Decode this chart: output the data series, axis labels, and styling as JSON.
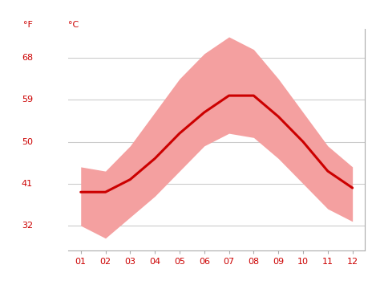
{
  "months": [
    1,
    2,
    3,
    4,
    5,
    6,
    7,
    8,
    9,
    10,
    11,
    12
  ],
  "x_labels": [
    "01",
    "02",
    "03",
    "04",
    "05",
    "06",
    "07",
    "08",
    "09",
    "10",
    "11",
    "12"
  ],
  "mean_temp_c": [
    4.0,
    4.0,
    5.5,
    8.0,
    11.0,
    13.5,
    15.5,
    15.5,
    13.0,
    10.0,
    6.5,
    4.5
  ],
  "max_temp_c": [
    7.0,
    6.5,
    9.5,
    13.5,
    17.5,
    20.5,
    22.5,
    21.0,
    17.5,
    13.5,
    9.5,
    7.0
  ],
  "min_temp_c": [
    0.0,
    -1.5,
    1.0,
    3.5,
    6.5,
    9.5,
    11.0,
    10.5,
    8.0,
    5.0,
    2.0,
    0.5
  ],
  "yticks_c": [
    0,
    5,
    10,
    15,
    20
  ],
  "yticks_f": [
    32,
    41,
    50,
    59,
    68
  ],
  "ylim_c": [
    -3.0,
    23.5
  ],
  "xlim": [
    0.5,
    12.5
  ],
  "line_color": "#cc0000",
  "fill_color": "#f4a0a0",
  "background_color": "#ffffff",
  "grid_color": "#cccccc",
  "tick_color": "#cc0000",
  "label_f": "°F",
  "label_c": "°C",
  "figsize": [
    4.74,
    3.55
  ],
  "dpi": 100
}
